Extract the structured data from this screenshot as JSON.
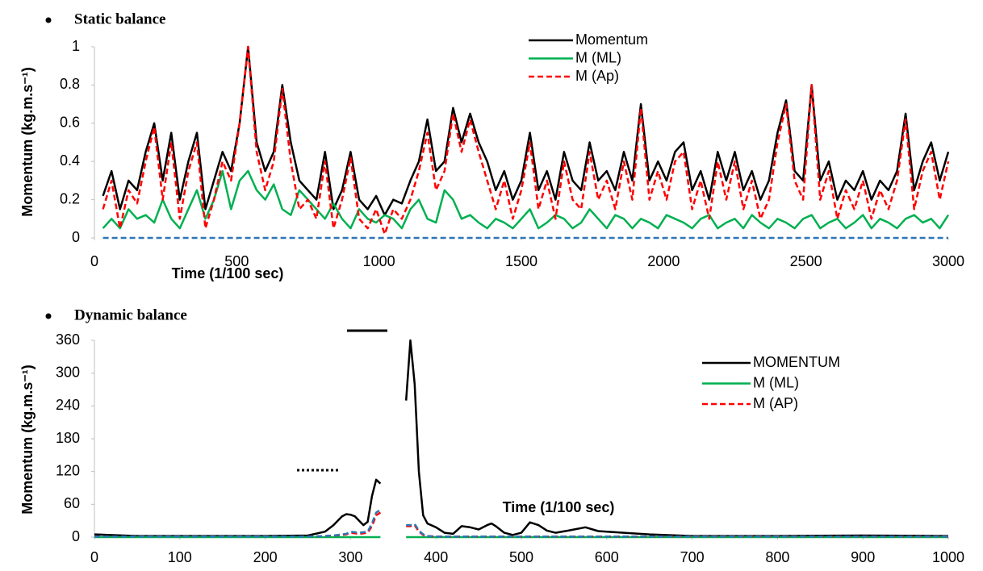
{
  "chart_data": [
    {
      "type": "line",
      "title": "Static balance",
      "x_label": "Time (1/100 sec)",
      "y_label": "Momentum (kg.m.s⁻¹)",
      "xlim": [
        0,
        3000
      ],
      "ylim": [
        0,
        1
      ],
      "xticks": [
        0,
        500,
        1000,
        1500,
        2000,
        2500,
        3000
      ],
      "yticks": [
        0,
        0.2,
        0.4,
        0.6,
        0.8,
        1
      ],
      "grid": false,
      "legend": "upper center",
      "x": [
        30,
        60,
        90,
        120,
        150,
        180,
        210,
        240,
        270,
        300,
        330,
        360,
        390,
        420,
        450,
        480,
        510,
        540,
        570,
        600,
        630,
        660,
        690,
        720,
        750,
        780,
        810,
        840,
        870,
        900,
        930,
        960,
        990,
        1020,
        1050,
        1080,
        1110,
        1140,
        1170,
        1200,
        1230,
        1260,
        1290,
        1320,
        1350,
        1380,
        1410,
        1440,
        1470,
        1500,
        1530,
        1560,
        1590,
        1620,
        1650,
        1680,
        1710,
        1740,
        1770,
        1800,
        1830,
        1860,
        1890,
        1920,
        1950,
        1980,
        2010,
        2040,
        2070,
        2100,
        2130,
        2160,
        2190,
        2220,
        2250,
        2280,
        2310,
        2340,
        2370,
        2400,
        2430,
        2460,
        2490,
        2520,
        2550,
        2580,
        2610,
        2640,
        2670,
        2700,
        2730,
        2760,
        2790,
        2820,
        2850,
        2880,
        2910,
        2940,
        2970,
        3000
      ],
      "series": [
        {
          "name": "Momentum",
          "color": "#000000",
          "dash": false,
          "values": [
            0.22,
            0.35,
            0.15,
            0.3,
            0.25,
            0.45,
            0.6,
            0.3,
            0.55,
            0.2,
            0.4,
            0.55,
            0.15,
            0.3,
            0.45,
            0.35,
            0.6,
            1.0,
            0.5,
            0.35,
            0.45,
            0.8,
            0.5,
            0.3,
            0.25,
            0.2,
            0.45,
            0.15,
            0.25,
            0.45,
            0.2,
            0.15,
            0.22,
            0.12,
            0.2,
            0.18,
            0.3,
            0.4,
            0.62,
            0.35,
            0.4,
            0.68,
            0.5,
            0.65,
            0.5,
            0.4,
            0.25,
            0.35,
            0.2,
            0.3,
            0.55,
            0.25,
            0.35,
            0.2,
            0.45,
            0.3,
            0.25,
            0.5,
            0.3,
            0.35,
            0.25,
            0.45,
            0.3,
            0.7,
            0.3,
            0.4,
            0.3,
            0.45,
            0.5,
            0.25,
            0.35,
            0.2,
            0.45,
            0.3,
            0.45,
            0.25,
            0.35,
            0.2,
            0.3,
            0.55,
            0.72,
            0.35,
            0.3,
            0.8,
            0.3,
            0.4,
            0.2,
            0.3,
            0.25,
            0.35,
            0.2,
            0.3,
            0.25,
            0.35,
            0.65,
            0.25,
            0.4,
            0.5,
            0.3,
            0.45
          ]
        },
        {
          "name": "M (ML)",
          "color": "#00b050",
          "dash": false,
          "values": [
            0.05,
            0.1,
            0.05,
            0.15,
            0.1,
            0.12,
            0.08,
            0.2,
            0.1,
            0.05,
            0.15,
            0.25,
            0.1,
            0.2,
            0.35,
            0.15,
            0.3,
            0.35,
            0.25,
            0.2,
            0.28,
            0.15,
            0.12,
            0.25,
            0.2,
            0.15,
            0.1,
            0.18,
            0.1,
            0.05,
            0.15,
            0.1,
            0.08,
            0.12,
            0.1,
            0.05,
            0.15,
            0.2,
            0.1,
            0.08,
            0.25,
            0.2,
            0.1,
            0.12,
            0.08,
            0.05,
            0.1,
            0.08,
            0.05,
            0.1,
            0.15,
            0.05,
            0.08,
            0.12,
            0.1,
            0.05,
            0.08,
            0.15,
            0.1,
            0.05,
            0.12,
            0.1,
            0.05,
            0.1,
            0.08,
            0.05,
            0.12,
            0.1,
            0.08,
            0.05,
            0.1,
            0.12,
            0.05,
            0.08,
            0.1,
            0.05,
            0.12,
            0.08,
            0.05,
            0.1,
            0.08,
            0.05,
            0.1,
            0.12,
            0.05,
            0.08,
            0.1,
            0.05,
            0.08,
            0.12,
            0.05,
            0.1,
            0.08,
            0.05,
            0.1,
            0.12,
            0.08,
            0.1,
            0.05,
            0.12
          ]
        },
        {
          "name": "M (Ap)",
          "color": "#ff0000",
          "dash": true,
          "values": [
            0.15,
            0.3,
            0.05,
            0.25,
            0.18,
            0.4,
            0.58,
            0.2,
            0.5,
            0.1,
            0.35,
            0.5,
            0.05,
            0.2,
            0.4,
            0.3,
            0.6,
            1.0,
            0.45,
            0.25,
            0.4,
            0.78,
            0.4,
            0.15,
            0.2,
            0.1,
            0.4,
            0.05,
            0.2,
            0.42,
            0.1,
            0.05,
            0.15,
            0.02,
            0.15,
            0.1,
            0.2,
            0.35,
            0.55,
            0.25,
            0.35,
            0.65,
            0.45,
            0.62,
            0.45,
            0.3,
            0.15,
            0.3,
            0.1,
            0.25,
            0.5,
            0.15,
            0.3,
            0.1,
            0.4,
            0.2,
            0.15,
            0.45,
            0.2,
            0.3,
            0.15,
            0.4,
            0.2,
            0.68,
            0.2,
            0.35,
            0.2,
            0.4,
            0.45,
            0.15,
            0.3,
            0.1,
            0.4,
            0.2,
            0.4,
            0.15,
            0.3,
            0.1,
            0.2,
            0.5,
            0.7,
            0.3,
            0.2,
            0.8,
            0.2,
            0.35,
            0.1,
            0.25,
            0.15,
            0.3,
            0.1,
            0.25,
            0.15,
            0.3,
            0.62,
            0.15,
            0.35,
            0.45,
            0.2,
            0.4
          ]
        },
        {
          "color": "#2e75b6",
          "dash": true,
          "values": [
            0,
            0,
            0,
            0,
            0,
            0,
            0,
            0,
            0,
            0,
            0,
            0,
            0,
            0,
            0,
            0,
            0,
            0,
            0,
            0,
            0,
            0,
            0,
            0,
            0,
            0,
            0,
            0,
            0,
            0,
            0,
            0,
            0,
            0,
            0,
            0,
            0,
            0,
            0,
            0,
            0,
            0,
            0,
            0,
            0,
            0,
            0,
            0,
            0,
            0,
            0,
            0,
            0,
            0,
            0,
            0,
            0,
            0,
            0,
            0,
            0,
            0,
            0,
            0,
            0,
            0,
            0,
            0,
            0,
            0,
            0,
            0,
            0,
            0,
            0,
            0,
            0,
            0,
            0,
            0,
            0,
            0,
            0,
            0,
            0,
            0,
            0,
            0,
            0,
            0,
            0,
            0,
            0,
            0,
            0,
            0,
            0,
            0,
            0,
            0
          ]
        }
      ]
    },
    {
      "type": "line",
      "title": "Dynamic balance",
      "x_label": "Time (1/100 sec)",
      "y_label": "Momentum (kg.m.s⁻¹)",
      "xlim": [
        0,
        1000
      ],
      "ylim": [
        0,
        360
      ],
      "xticks": [
        0,
        100,
        200,
        300,
        400,
        500,
        600,
        700,
        800,
        900,
        1000
      ],
      "yticks": [
        0,
        60,
        120,
        180,
        240,
        300,
        360
      ],
      "grid": false,
      "legend": "upper right",
      "x": [
        0,
        50,
        100,
        150,
        200,
        250,
        270,
        280,
        290,
        295,
        300,
        305,
        310,
        315,
        320,
        325,
        330,
        335,
        350,
        365,
        370,
        375,
        380,
        385,
        390,
        400,
        410,
        420,
        430,
        440,
        450,
        460,
        465,
        470,
        480,
        490,
        500,
        510,
        520,
        530,
        540,
        555,
        575,
        590,
        600,
        620,
        650,
        700,
        800,
        900,
        1000
      ],
      "series": [
        {
          "name": "MOMENTUM",
          "color": "#000000",
          "dash": false,
          "values": [
            5,
            2,
            2,
            2,
            2,
            3,
            10,
            22,
            38,
            42,
            41,
            38,
            30,
            22,
            28,
            75,
            105,
            98,
            null,
            250,
            360,
            280,
            120,
            40,
            25,
            18,
            8,
            6,
            20,
            18,
            14,
            22,
            25,
            20,
            8,
            4,
            8,
            27,
            22,
            12,
            8,
            12,
            18,
            11,
            10,
            8,
            5,
            2,
            2,
            3,
            2
          ]
        },
        {
          "name": "M (ML)",
          "color": "#00b050",
          "dash": false,
          "values": [
            0,
            0,
            0,
            0,
            0,
            0,
            0,
            0,
            0,
            0,
            0,
            0,
            0,
            0,
            0,
            0,
            0,
            0,
            null,
            0,
            0,
            0,
            0,
            0,
            0,
            0,
            0,
            0,
            0,
            0,
            0,
            0,
            0,
            0,
            0,
            0,
            0,
            0,
            0,
            0,
            0,
            0,
            0,
            0,
            0,
            0,
            0,
            0,
            0,
            0,
            0
          ]
        },
        {
          "name": "M (AP)",
          "color": "#ff0000",
          "dash": true,
          "values": [
            1,
            1,
            1,
            1,
            1,
            1,
            2,
            3,
            4,
            5,
            8,
            7,
            6,
            7,
            8,
            20,
            40,
            45,
            null,
            20,
            20,
            22,
            10,
            4,
            2,
            1,
            1,
            1,
            1,
            1,
            1,
            1,
            1,
            1,
            1,
            1,
            1,
            1,
            1,
            1,
            1,
            1,
            1,
            1,
            1,
            1,
            1,
            1,
            1,
            1,
            1
          ]
        },
        {
          "color": "#2e75b6",
          "dash": true,
          "values": [
            1,
            1,
            1,
            1,
            1,
            1,
            2,
            3,
            5,
            6,
            10,
            9,
            8,
            9,
            10,
            25,
            45,
            50,
            null,
            22,
            22,
            24,
            12,
            5,
            2,
            1,
            1,
            1,
            1,
            1,
            1,
            1,
            1,
            1,
            1,
            1,
            1,
            1,
            1,
            1,
            1,
            1,
            1,
            1,
            1,
            1,
            1,
            1,
            1,
            1,
            1
          ]
        }
      ]
    }
  ]
}
